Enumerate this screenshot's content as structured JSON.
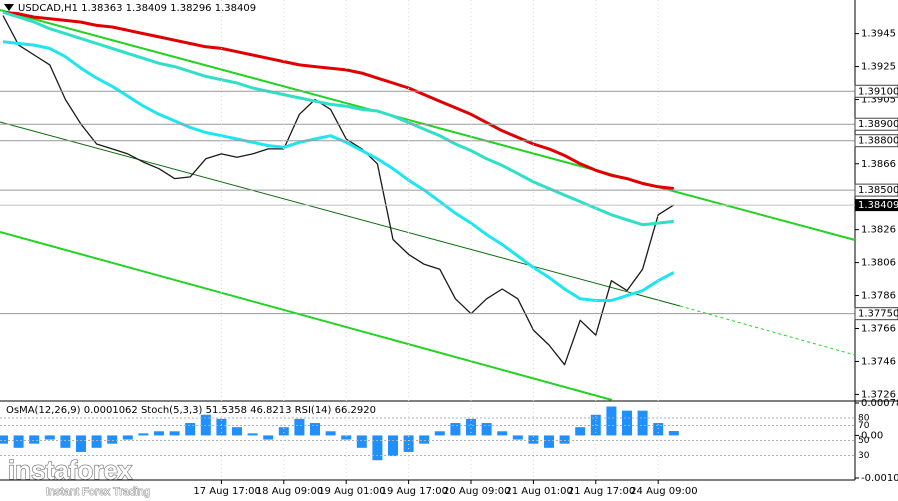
{
  "chart_data": [
    {
      "type": "line",
      "title": "USDCAD,H1  1.38363 1.38409 1.38296 1.38409",
      "categories": [
        null,
        null,
        null,
        null,
        null,
        null,
        null,
        null,
        null,
        null,
        null,
        null,
        null,
        null,
        "17 Aug 17:00",
        null,
        null,
        null,
        "18 Aug 09:00",
        null,
        null,
        null,
        "19 Aug 01:00",
        null,
        null,
        null,
        "19 Aug 17:00",
        null,
        null,
        null,
        "20 Aug 09:00",
        null,
        null,
        null,
        "21 Aug 01:00",
        null,
        null,
        null,
        "21 Aug 17:00",
        null,
        null,
        null,
        "24 Aug 09:00",
        null
      ],
      "series": [
        {
          "color": "#1a1a1a",
          "values": [
            1.3956,
            1.3938,
            1.3932,
            1.3926,
            1.3905,
            1.389,
            1.3878,
            1.3875,
            1.3872,
            1.3867,
            1.3863,
            1.3857,
            1.3858,
            1.3869,
            1.3872,
            1.387,
            1.3872,
            1.3875,
            1.3875,
            1.3896,
            1.3905,
            1.3899,
            1.3881,
            1.3875,
            1.3866,
            1.382,
            1.3811,
            1.3805,
            1.3802,
            1.3784,
            1.3775,
            1.3784,
            1.379,
            1.3784,
            1.3765,
            1.3756,
            1.3744,
            1.3771,
            1.3762,
            1.3795,
            1.3789,
            1.3802,
            1.3835,
            1.3841
          ]
        },
        {
          "color": "#e00000",
          "values": [
            1.3958,
            1.3957,
            1.3955,
            1.3954,
            1.3953,
            1.3952,
            1.395,
            1.3949,
            1.3947,
            1.3945,
            1.3943,
            1.3941,
            1.3939,
            1.3937,
            1.3936,
            1.3934,
            1.3932,
            1.393,
            1.3928,
            1.3926,
            1.3925,
            1.3924,
            1.3923,
            1.3921,
            1.3918,
            1.3915,
            1.3912,
            1.3908,
            1.3904,
            1.39,
            1.3896,
            1.3891,
            1.3886,
            1.3882,
            1.3878,
            1.3875,
            1.3871,
            1.3866,
            1.3862,
            1.3859,
            1.3857,
            1.3854,
            1.3852,
            1.3851
          ]
        },
        {
          "color": "#2ee0c8",
          "values": [
            1.3958,
            1.3955,
            1.3952,
            1.3948,
            1.3945,
            1.3942,
            1.3939,
            1.3936,
            1.3933,
            1.393,
            1.3927,
            1.3925,
            1.3922,
            1.3919,
            1.3917,
            1.3915,
            1.3912,
            1.391,
            1.3908,
            1.3906,
            1.3904,
            1.3902,
            1.3901,
            1.3899,
            1.3898,
            1.3895,
            1.3891,
            1.3887,
            1.3883,
            1.3878,
            1.3874,
            1.3869,
            1.3865,
            1.386,
            1.3855,
            1.3851,
            1.3847,
            1.3843,
            1.3839,
            1.3835,
            1.3832,
            1.3829,
            1.383,
            1.3831
          ]
        },
        {
          "color": "#1ee6f0",
          "values": [
            1.394,
            1.3939,
            1.3938,
            1.3936,
            1.3931,
            1.3924,
            1.3918,
            1.3913,
            1.3907,
            1.3901,
            1.3896,
            1.3892,
            1.3888,
            1.3885,
            1.3883,
            1.3881,
            1.3879,
            1.3877,
            1.3876,
            1.3879,
            1.3881,
            1.3883,
            1.3879,
            1.3874,
            1.3869,
            1.3863,
            1.3856,
            1.385,
            1.3843,
            1.3836,
            1.383,
            1.3823,
            1.3817,
            1.381,
            1.3803,
            1.3797,
            1.379,
            1.3784,
            1.3783,
            1.3783,
            1.3786,
            1.3789,
            1.3795,
            1.38
          ]
        }
      ],
      "ylim": [
        1.37226,
        1.39654
      ],
      "yticks": [
        1.3945,
        1.3925,
        1.3905,
        1.3866,
        1.3826,
        1.3806,
        1.3786,
        1.3766,
        1.3746,
        1.3726
      ],
      "levels": [
        {
          "value": 1.391,
          "label": "1.39100"
        },
        {
          "value": 1.389,
          "label": "1.38900"
        },
        {
          "value": 1.388,
          "label": "1.38800"
        },
        {
          "value": 1.385,
          "label": "1.38500"
        },
        {
          "value": 1.3775,
          "label": "1.37750"
        }
      ],
      "last_price": 1.38409
    },
    {
      "type": "bar",
      "title": "OsMA(12,26,9) 0.0001062 Stoch(5,3,3) 51.5358 46.8213 RSI(14) 66.2920",
      "color": "#1e90ff",
      "values": [
        -0.0002,
        -0.0003,
        -0.0002,
        -0.0001,
        -0.0003,
        -0.0004,
        -0.0003,
        -0.0002,
        -0.0001,
        5e-05,
        0.0001,
        0.0001,
        0.0003,
        0.0005,
        0.0004,
        0.0002,
        5e-05,
        -0.0001,
        0.0002,
        0.0004,
        0.0003,
        0.0001,
        -0.0001,
        -0.0003,
        -0.0006,
        -0.0005,
        -0.0004,
        -0.0002,
        0.0001,
        0.0003,
        0.0004,
        0.0003,
        0.0001,
        -0.0001,
        -0.0002,
        -0.0003,
        -0.0002,
        0.0002,
        0.0005,
        0.0007,
        0.0006,
        0.0006,
        0.0003,
        0.0001062
      ],
      "ylim": [
        -0.001031,
        0.000785
      ],
      "yticks": [
        0.000785,
        {
          "value": 0,
          "label": "0.00"
        },
        -0.001031
      ],
      "y2lim": [
        0,
        100
      ],
      "levels": [
        80,
        70,
        50,
        30
      ]
    }
  ],
  "watermark": {
    "brand": "instaforex",
    "slogan": "Instant Forex Trading"
  }
}
